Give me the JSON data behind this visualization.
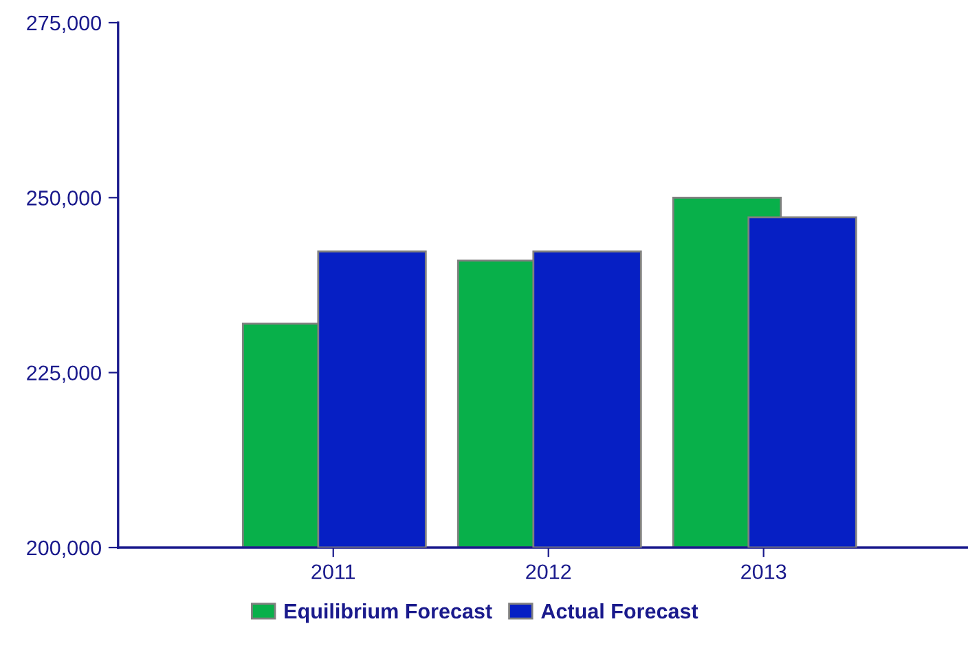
{
  "chart_data": {
    "type": "bar",
    "categories": [
      "2011",
      "2012",
      "2013"
    ],
    "series": [
      {
        "name": "Equilibrium Forecast",
        "color": "#08b04a",
        "values": [
          232000,
          241000,
          250000
        ]
      },
      {
        "name": "Actual Forecast",
        "color": "#061fc4",
        "values": [
          242300,
          242300,
          247200
        ]
      }
    ],
    "ylim": [
      200000,
      275000
    ],
    "yticks": [
      {
        "value": 200000,
        "label": "200,000"
      },
      {
        "value": 225000,
        "label": "225,000"
      },
      {
        "value": 250000,
        "label": "250,000"
      },
      {
        "value": 275000,
        "label": "275,000"
      }
    ],
    "grid": false,
    "legend": "bottom"
  }
}
